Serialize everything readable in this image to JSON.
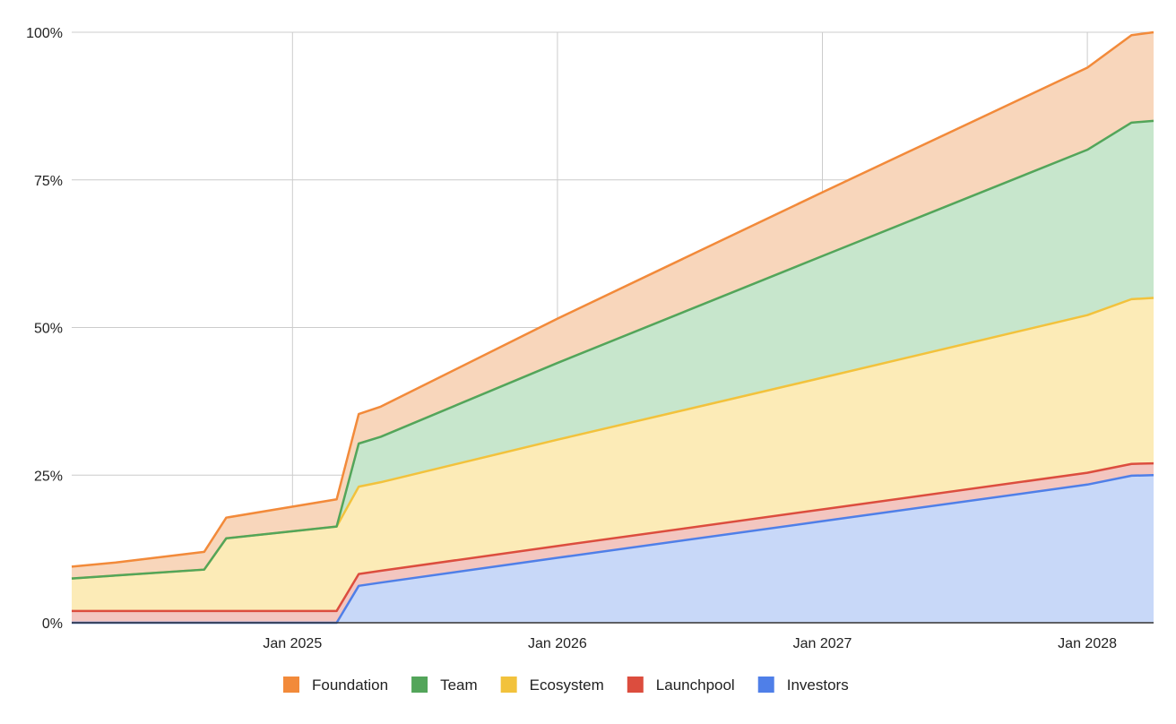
{
  "chart_data": {
    "type": "area",
    "stacked": true,
    "title": "",
    "xlabel": "",
    "ylabel": "",
    "y_unit": "%",
    "ylim": [
      0,
      100
    ],
    "y_ticks": [
      {
        "value": 0,
        "label": "0%"
      },
      {
        "value": 25,
        "label": "25%"
      },
      {
        "value": 50,
        "label": "50%"
      },
      {
        "value": 75,
        "label": "75%"
      },
      {
        "value": 100,
        "label": "100%"
      }
    ],
    "xlim": [
      "2024-03",
      "2028-04"
    ],
    "x_ticks": [
      {
        "value": "2025-01",
        "label": "Jan 2025"
      },
      {
        "value": "2026-01",
        "label": "Jan 2026"
      },
      {
        "value": "2027-01",
        "label": "Jan 2027"
      },
      {
        "value": "2028-01",
        "label": "Jan 2028"
      }
    ],
    "x": [
      "2024-03",
      "2024-05",
      "2024-09",
      "2024-10",
      "2025-03",
      "2025-04",
      "2025-05",
      "2026-01",
      "2027-01",
      "2028-01",
      "2028-03",
      "2028-04"
    ],
    "series": [
      {
        "name": "Investors",
        "color": "#4f7fe8",
        "fill": "#c8d8f8",
        "values": [
          0,
          0,
          0,
          0,
          0,
          6.25,
          6.8,
          11,
          17.2,
          23.4,
          24.9,
          25
        ]
      },
      {
        "name": "Launchpool",
        "color": "#dc4d3e",
        "fill": "#f3c6c0",
        "values": [
          2,
          2,
          2,
          2,
          2,
          2,
          2,
          2,
          2,
          2,
          2,
          2
        ]
      },
      {
        "name": "Ecosystem",
        "color": "#f2c23c",
        "fill": "#fcebb7",
        "values": [
          5.5,
          6,
          7,
          12.3,
          14.3,
          14.8,
          15,
          18,
          22.3,
          26.7,
          27.9,
          28
        ]
      },
      {
        "name": "Team",
        "color": "#53a55a",
        "fill": "#c7e6cc",
        "values": [
          0,
          0,
          0,
          0,
          0,
          7.3,
          7.7,
          13,
          20.6,
          28,
          29.9,
          30
        ]
      },
      {
        "name": "Foundation",
        "color": "#f28a3a",
        "fill": "#f8d6bb",
        "values": [
          2,
          2.2,
          3,
          3.5,
          4.6,
          5,
          5.1,
          7.5,
          10.8,
          13.9,
          14.8,
          15
        ]
      }
    ],
    "legend": {
      "position": "bottom",
      "order": [
        "Foundation",
        "Team",
        "Ecosystem",
        "Launchpool",
        "Investors"
      ]
    },
    "grid": true,
    "gridline_color": "#cccccc",
    "axis_color": "#333333"
  }
}
